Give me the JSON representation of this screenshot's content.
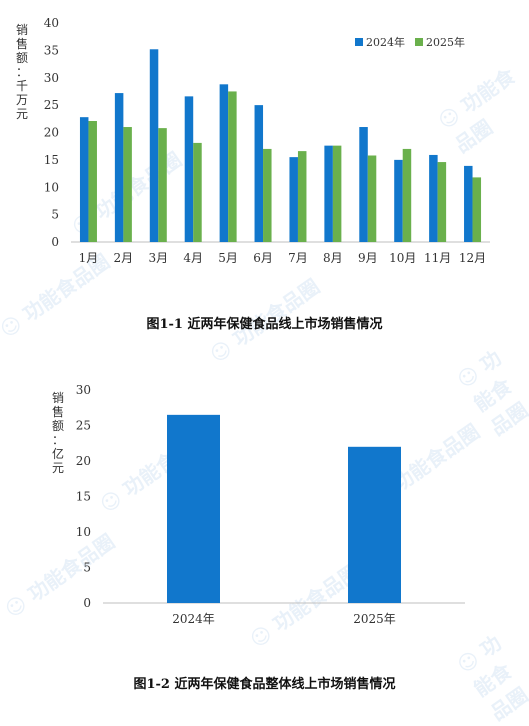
{
  "chart_data": [
    {
      "type": "bar",
      "ylabel": "销售额：千万元",
      "categories": [
        "1月",
        "2月",
        "3月",
        "4月",
        "5月",
        "6月",
        "7月",
        "8月",
        "9月",
        "10月",
        "11月",
        "12月"
      ],
      "series": [
        {
          "name": "2024年",
          "values": [
            22.8,
            27.2,
            35.2,
            26.6,
            28.8,
            25.0,
            15.5,
            17.6,
            21.0,
            15.0,
            15.9,
            13.9
          ],
          "color": "#1177cc"
        },
        {
          "name": "2025年",
          "values": [
            22.1,
            21.0,
            20.8,
            18.1,
            27.5,
            17.0,
            16.6,
            17.6,
            15.8,
            17.0,
            14.6,
            11.8
          ],
          "color": "#6ab04c"
        }
      ],
      "ylim": [
        0,
        40
      ],
      "yticks": [
        0,
        5,
        10,
        15,
        20,
        25,
        30,
        35,
        40
      ],
      "legend": "top-right",
      "grid": false,
      "caption": "图1-1  近两年保健食品线上市场销售情况"
    },
    {
      "type": "bar",
      "ylabel": "销售额：亿元",
      "categories": [
        "2024年",
        "2025年"
      ],
      "series": [
        {
          "values": [
            26.5,
            22.0
          ],
          "color": "#1177cc"
        }
      ],
      "ylim": [
        0,
        30
      ],
      "yticks": [
        0,
        5,
        10,
        15,
        20,
        25,
        30
      ],
      "grid": false,
      "caption": "图1-2  近两年保健食品整体线上市场销售情况"
    }
  ]
}
